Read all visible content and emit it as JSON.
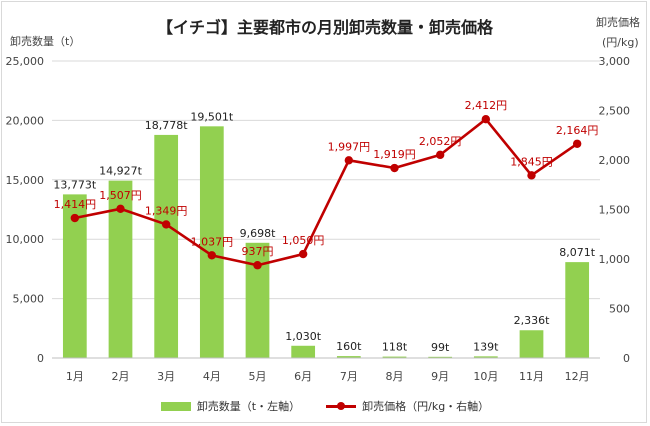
{
  "chart_data": {
    "type": "bar",
    "title": "【イチゴ】主要都市の月別卸売数量・卸売価格",
    "ylabel": "卸売数量（t）",
    "y2label_line1": "卸売価格",
    "y2label_line2": "(円/kg)",
    "categories": [
      "1月",
      "2月",
      "3月",
      "4月",
      "5月",
      "6月",
      "7月",
      "8月",
      "9月",
      "10月",
      "11月",
      "12月"
    ],
    "ylim": [
      0,
      25000
    ],
    "y2lim": [
      0,
      3000
    ],
    "yticks": [
      "0",
      "5,000",
      "10,000",
      "15,000",
      "20,000",
      "25,000"
    ],
    "y2ticks": [
      "0",
      "500",
      "1,000",
      "1,500",
      "2,000",
      "2,500",
      "3,000"
    ],
    "grid": true,
    "legend_position": "bottom",
    "series": [
      {
        "name": "卸売数量（t・左軸）",
        "kind": "bar",
        "axis": "left",
        "color": "#92d050",
        "values": [
          13773,
          14927,
          18778,
          19501,
          9698,
          1030,
          160,
          118,
          99,
          139,
          2336,
          8071
        ],
        "labels": [
          "13,773t",
          "14,927t",
          "18,778t",
          "19,501t",
          "9,698t",
          "1,030t",
          "160t",
          "118t",
          "99t",
          "139t",
          "2,336t",
          "8,071t"
        ]
      },
      {
        "name": "卸売価格（円/kg・右軸）",
        "kind": "line",
        "axis": "right",
        "color": "#c00000",
        "values": [
          1414,
          1507,
          1349,
          1037,
          937,
          1050,
          1997,
          1919,
          2052,
          2412,
          1845,
          2164
        ],
        "labels": [
          "1,414円",
          "1,507円",
          "1,349円",
          "1,037円",
          "937円",
          "1,050円",
          "1,997円",
          "1,919円",
          "2,052円",
          "2,412円",
          "1,845円",
          "2,164円"
        ]
      }
    ]
  }
}
